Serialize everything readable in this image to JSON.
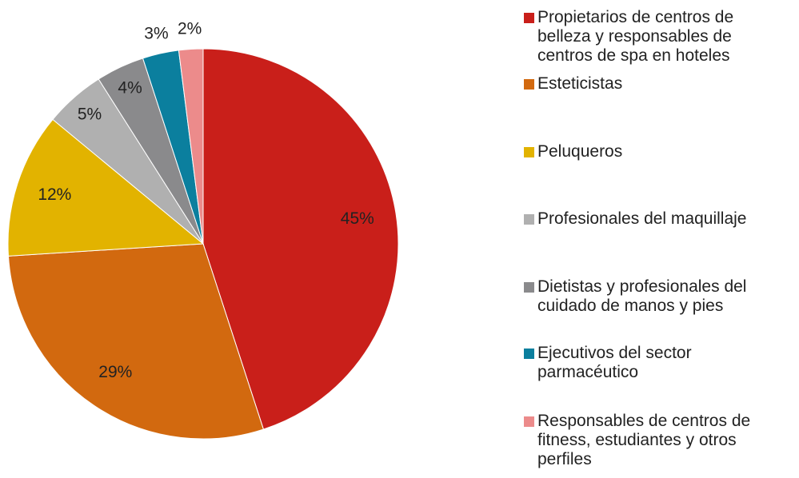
{
  "chart_data": {
    "type": "pie",
    "categories": [
      "Propietarios de centros de belleza y responsables de centros de spa en hoteles",
      "Esteticistas",
      "Peluqueros",
      "Profesionales del maquillaje",
      "Dietistas y profesionales del cuidado de manos y pies",
      "Ejecutivos del sector parmacéutico",
      "Responsables de centros de fitness, estudiantes y otros perfiles"
    ],
    "values": [
      45,
      29,
      12,
      5,
      4,
      3,
      2
    ],
    "value_labels": [
      "45%",
      "29%",
      "12%",
      "5%",
      "4%",
      "3%",
      "2%"
    ],
    "colors": [
      "#c91f1a",
      "#d2690f",
      "#e2b300",
      "#b0b0b0",
      "#8a8a8c",
      "#0b7f9e",
      "#ec8b8b"
    ],
    "legend": "right"
  }
}
